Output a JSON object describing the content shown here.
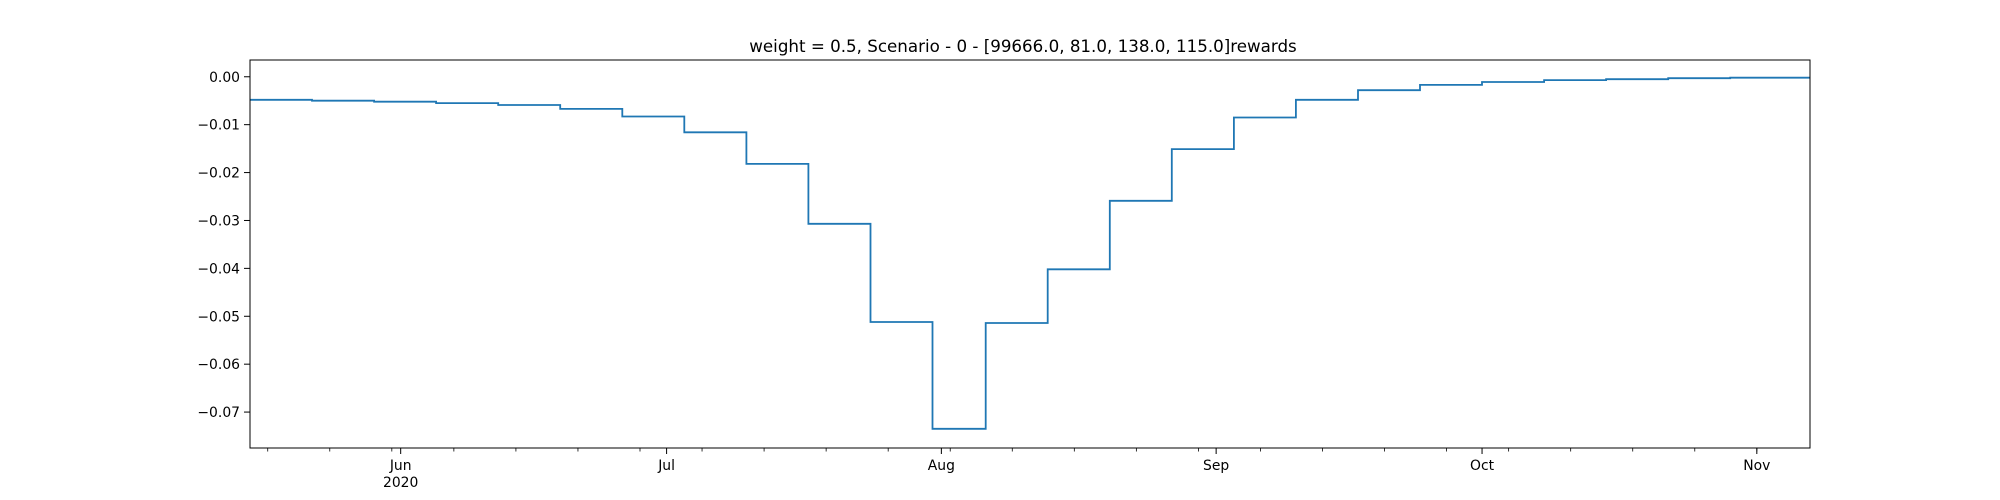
{
  "chart_data": {
    "type": "line",
    "drawstyle": "steps-post",
    "title": "weight = 0.5, Scenario - 0 - [99666.0, 81.0, 138.0, 115.0]rewards",
    "xlabel": "",
    "ylabel": "",
    "xlim": [
      "2020-05-15",
      "2020-11-07"
    ],
    "ylim": [
      -0.0775,
      0.0035
    ],
    "grid": false,
    "x_ticks": [
      {
        "date": "2020-06-01",
        "label": "Jun",
        "sublabel": "2020"
      },
      {
        "date": "2020-07-01",
        "label": "Jul",
        "sublabel": ""
      },
      {
        "date": "2020-08-01",
        "label": "Aug",
        "sublabel": ""
      },
      {
        "date": "2020-09-01",
        "label": "Sep",
        "sublabel": ""
      },
      {
        "date": "2020-10-01",
        "label": "Oct",
        "sublabel": ""
      },
      {
        "date": "2020-11-01",
        "label": "Nov",
        "sublabel": ""
      }
    ],
    "y_ticks": [
      {
        "value": 0.0,
        "label": "0.00"
      },
      {
        "value": -0.01,
        "label": "−0.01"
      },
      {
        "value": -0.02,
        "label": "−0.02"
      },
      {
        "value": -0.03,
        "label": "−0.03"
      },
      {
        "value": -0.04,
        "label": "−0.04"
      },
      {
        "value": -0.05,
        "label": "−0.05"
      },
      {
        "value": -0.06,
        "label": "−0.06"
      },
      {
        "value": -0.07,
        "label": "−0.07"
      }
    ],
    "series": [
      {
        "color": "#1f77b4",
        "x": [
          "2020-05-15",
          "2020-05-22",
          "2020-05-29",
          "2020-06-05",
          "2020-06-12",
          "2020-06-19",
          "2020-06-26",
          "2020-07-03",
          "2020-07-10",
          "2020-07-17",
          "2020-07-24",
          "2020-07-31",
          "2020-08-06",
          "2020-08-13",
          "2020-08-20",
          "2020-08-27",
          "2020-09-03",
          "2020-09-10",
          "2020-09-17",
          "2020-09-24",
          "2020-10-01",
          "2020-10-08",
          "2020-10-15",
          "2020-10-22",
          "2020-10-29",
          "2020-11-07"
        ],
        "values": [
          -0.0048,
          -0.005,
          -0.0052,
          -0.0055,
          -0.0059,
          -0.0067,
          -0.0083,
          -0.0116,
          -0.0182,
          -0.0307,
          -0.0512,
          -0.0735,
          -0.0514,
          -0.0402,
          -0.0259,
          -0.0151,
          -0.0085,
          -0.0048,
          -0.0028,
          -0.0017,
          -0.0011,
          -0.0007,
          -0.0005,
          -0.0003,
          -0.0002,
          -0.0002
        ]
      }
    ]
  }
}
